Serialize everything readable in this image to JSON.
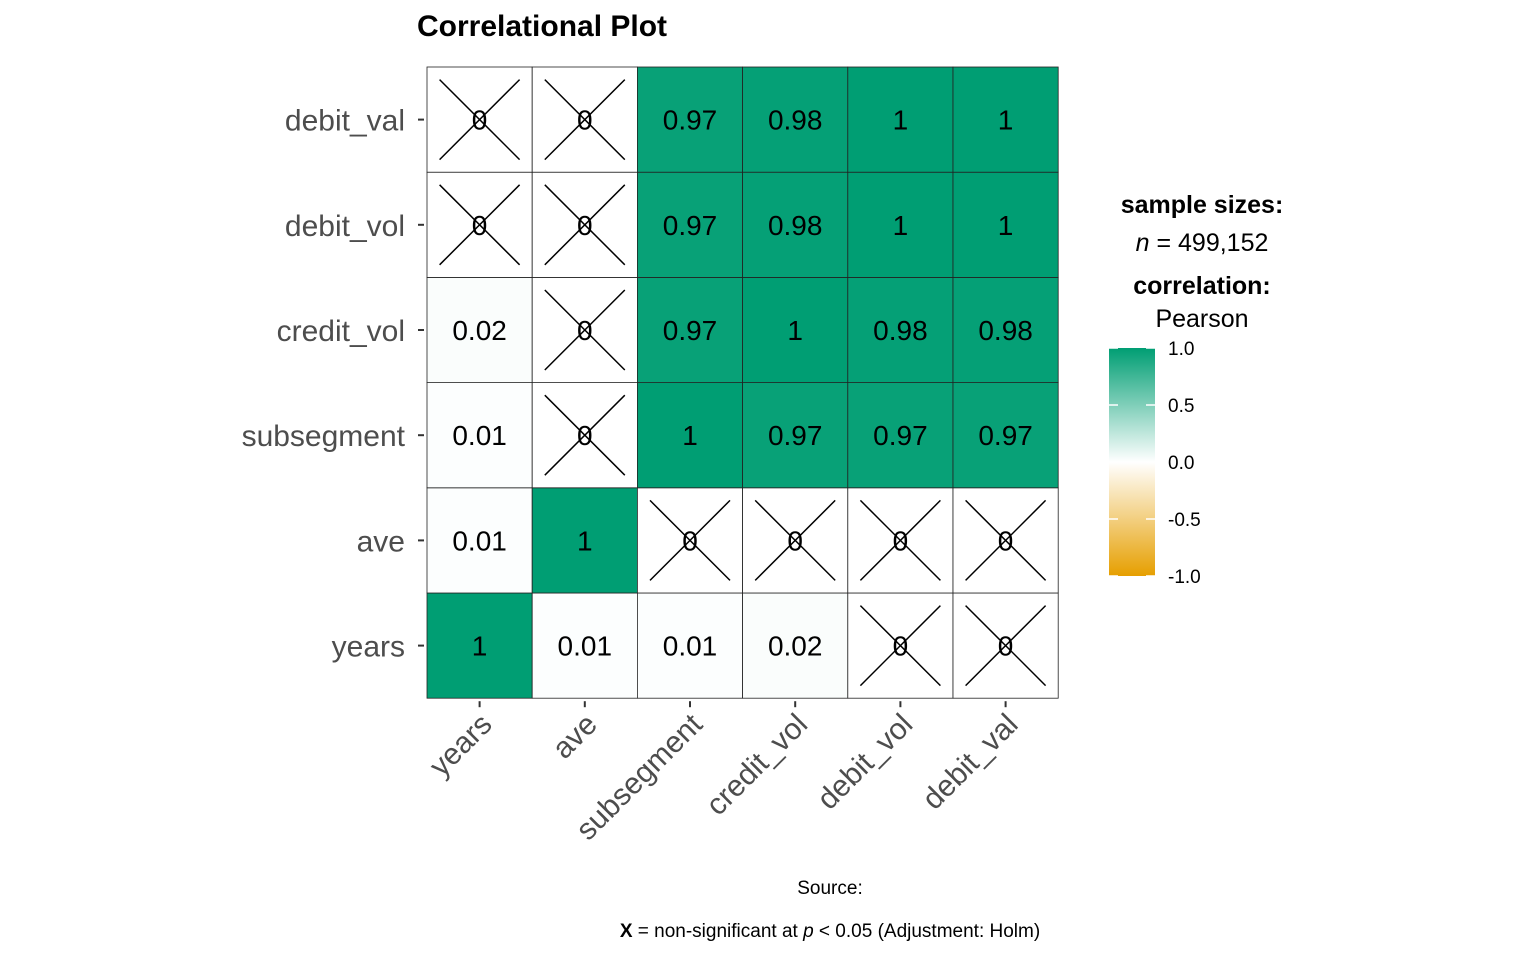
{
  "chart_data": {
    "type": "heatmap",
    "title": "Correlational Plot",
    "variables": [
      "years",
      "ave",
      "subsegment",
      "credit_vol",
      "debit_vol",
      "debit_val"
    ],
    "y_order_top_to_bottom": [
      "debit_val",
      "debit_vol",
      "credit_vol",
      "subsegment",
      "ave",
      "years"
    ],
    "cells": [
      {
        "x": "years",
        "y": "years",
        "r": 1,
        "label": "1",
        "significant": true
      },
      {
        "x": "ave",
        "y": "years",
        "r": 0.01,
        "label": "0.01",
        "significant": true
      },
      {
        "x": "subsegment",
        "y": "years",
        "r": 0.01,
        "label": "0.01",
        "significant": true
      },
      {
        "x": "credit_vol",
        "y": "years",
        "r": 0.02,
        "label": "0.02",
        "significant": true
      },
      {
        "x": "debit_vol",
        "y": "years",
        "r": 0,
        "label": "0",
        "significant": false
      },
      {
        "x": "debit_val",
        "y": "years",
        "r": 0,
        "label": "0",
        "significant": false
      },
      {
        "x": "years",
        "y": "ave",
        "r": 0.01,
        "label": "0.01",
        "significant": true
      },
      {
        "x": "ave",
        "y": "ave",
        "r": 1,
        "label": "1",
        "significant": true
      },
      {
        "x": "subsegment",
        "y": "ave",
        "r": 0,
        "label": "0",
        "significant": false
      },
      {
        "x": "credit_vol",
        "y": "ave",
        "r": 0,
        "label": "0",
        "significant": false
      },
      {
        "x": "debit_vol",
        "y": "ave",
        "r": 0,
        "label": "0",
        "significant": false
      },
      {
        "x": "debit_val",
        "y": "ave",
        "r": 0,
        "label": "0",
        "significant": false
      },
      {
        "x": "years",
        "y": "subsegment",
        "r": 0.01,
        "label": "0.01",
        "significant": true
      },
      {
        "x": "ave",
        "y": "subsegment",
        "r": 0,
        "label": "0",
        "significant": false
      },
      {
        "x": "subsegment",
        "y": "subsegment",
        "r": 1,
        "label": "1",
        "significant": true
      },
      {
        "x": "credit_vol",
        "y": "subsegment",
        "r": 0.97,
        "label": "0.97",
        "significant": true
      },
      {
        "x": "debit_vol",
        "y": "subsegment",
        "r": 0.97,
        "label": "0.97",
        "significant": true
      },
      {
        "x": "debit_val",
        "y": "subsegment",
        "r": 0.97,
        "label": "0.97",
        "significant": true
      },
      {
        "x": "years",
        "y": "credit_vol",
        "r": 0.02,
        "label": "0.02",
        "significant": true
      },
      {
        "x": "ave",
        "y": "credit_vol",
        "r": 0,
        "label": "0",
        "significant": false
      },
      {
        "x": "subsegment",
        "y": "credit_vol",
        "r": 0.97,
        "label": "0.97",
        "significant": true
      },
      {
        "x": "credit_vol",
        "y": "credit_vol",
        "r": 1,
        "label": "1",
        "significant": true
      },
      {
        "x": "debit_vol",
        "y": "credit_vol",
        "r": 0.98,
        "label": "0.98",
        "significant": true
      },
      {
        "x": "debit_val",
        "y": "credit_vol",
        "r": 0.98,
        "label": "0.98",
        "significant": true
      },
      {
        "x": "years",
        "y": "debit_vol",
        "r": 0,
        "label": "0",
        "significant": false
      },
      {
        "x": "ave",
        "y": "debit_vol",
        "r": 0,
        "label": "0",
        "significant": false
      },
      {
        "x": "subsegment",
        "y": "debit_vol",
        "r": 0.97,
        "label": "0.97",
        "significant": true
      },
      {
        "x": "credit_vol",
        "y": "debit_vol",
        "r": 0.98,
        "label": "0.98",
        "significant": true
      },
      {
        "x": "debit_vol",
        "y": "debit_vol",
        "r": 1,
        "label": "1",
        "significant": true
      },
      {
        "x": "debit_val",
        "y": "debit_vol",
        "r": 1,
        "label": "1",
        "significant": true
      },
      {
        "x": "years",
        "y": "debit_val",
        "r": 0,
        "label": "0",
        "significant": false
      },
      {
        "x": "ave",
        "y": "debit_val",
        "r": 0,
        "label": "0",
        "significant": false
      },
      {
        "x": "subsegment",
        "y": "debit_val",
        "r": 0.97,
        "label": "0.97",
        "significant": true
      },
      {
        "x": "credit_vol",
        "y": "debit_val",
        "r": 0.98,
        "label": "0.98",
        "significant": true
      },
      {
        "x": "debit_vol",
        "y": "debit_val",
        "r": 1,
        "label": "1",
        "significant": true
      },
      {
        "x": "debit_val",
        "y": "debit_val",
        "r": 1,
        "label": "1",
        "significant": true
      }
    ],
    "legend": {
      "sample_heading": "sample sizes:",
      "sample_n_symbol": "n",
      "sample_n_value": " = 499,152",
      "corr_heading": "correlation:",
      "corr_method": "Pearson",
      "scale_ticks": [
        "1.0",
        "0.5",
        "0.0",
        "-0.5",
        "-1.0"
      ],
      "scale_tick_values": [
        1.0,
        0.5,
        0.0,
        -0.5,
        -1.0
      ],
      "colors": {
        "high": "#009E73",
        "mid": "#FFFFFF",
        "low": "#E69F00"
      }
    },
    "caption": {
      "source": "Source:",
      "x_mark": "X",
      "mid_text": " = non-significant at ",
      "p_symbol": "p",
      "tail_text": " < 0.05 (Adjustment: Holm)"
    }
  }
}
